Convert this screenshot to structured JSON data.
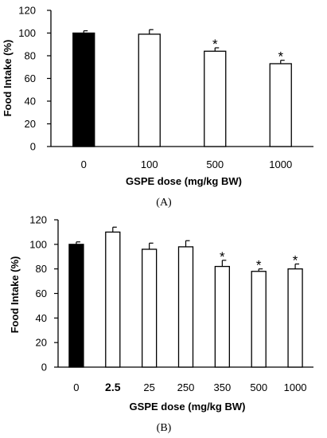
{
  "chart_data": [
    {
      "type": "bar",
      "panel_label": "(A)",
      "categories": [
        "0",
        "100",
        "500",
        "1000"
      ],
      "values": [
        100,
        99,
        84,
        73
      ],
      "errors": [
        2,
        4,
        3,
        3
      ],
      "significant": [
        false,
        false,
        true,
        true
      ],
      "significance_marker": "*",
      "bar_colors": [
        "#000000",
        "#ffffff",
        "#ffffff",
        "#ffffff"
      ],
      "xlabel": "GSPE dose (mg/kg BW)",
      "ylabel": "Food Intake (%)",
      "ylim": [
        0,
        120
      ],
      "yticks": [
        "0",
        "20",
        "40",
        "60",
        "80",
        "100",
        "120"
      ],
      "grid": false
    },
    {
      "type": "bar",
      "panel_label": "(B)",
      "categories": [
        "0",
        "2.5",
        "25",
        "250",
        "350",
        "500",
        "1000"
      ],
      "values": [
        100,
        110,
        96,
        98,
        82,
        78,
        80
      ],
      "errors": [
        2,
        4,
        5,
        5,
        5,
        2,
        4
      ],
      "significant": [
        false,
        false,
        false,
        false,
        true,
        true,
        true
      ],
      "significance_marker": "*",
      "bar_colors": [
        "#000000",
        "#ffffff",
        "#ffffff",
        "#ffffff",
        "#ffffff",
        "#ffffff",
        "#ffffff"
      ],
      "xlabel": "GSPE dose (mg/kg BW)",
      "ylabel": "Food Intake (%)",
      "ylim": [
        0,
        120
      ],
      "yticks": [
        "0",
        "20",
        "40",
        "60",
        "80",
        "100",
        "120"
      ],
      "grid": false
    }
  ]
}
